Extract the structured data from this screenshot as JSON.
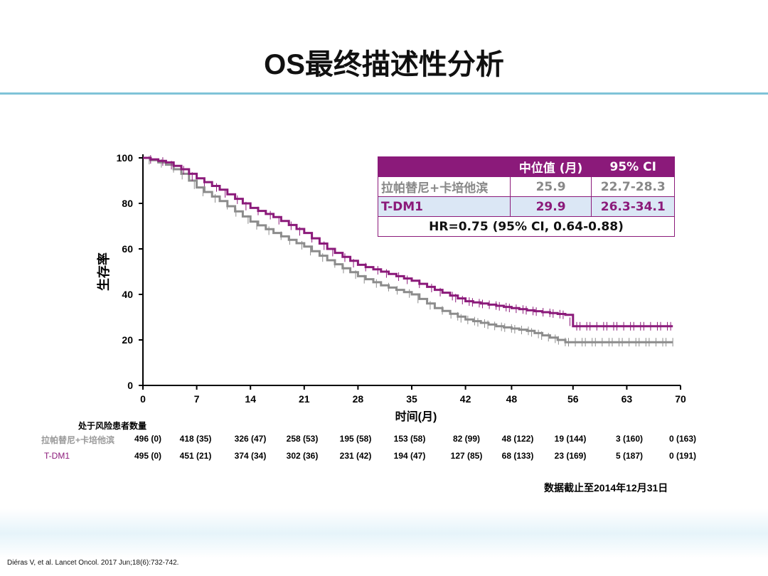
{
  "title": "OS最终描述性分析",
  "chart_data": {
    "type": "line",
    "title": "OS最终描述性分析",
    "xlabel": "时间(月)",
    "ylabel": "生存率",
    "xlim": [
      0,
      70
    ],
    "ylim": [
      0,
      100
    ],
    "xticks": [
      0,
      7,
      14,
      21,
      28,
      35,
      42,
      48,
      56,
      63,
      70
    ],
    "yticks": [
      0,
      20,
      40,
      60,
      80,
      100
    ],
    "series": [
      {
        "name": "拉帕替尼+卡培他滨",
        "color": "#8c8c8c",
        "x": [
          0,
          3,
          5,
          7,
          10,
          14,
          17,
          21,
          24,
          28,
          31,
          35,
          38,
          42,
          46,
          50,
          55,
          69
        ],
        "y": [
          100,
          97,
          93,
          87,
          81,
          72,
          67,
          61,
          55,
          48,
          44,
          40,
          34,
          29,
          26,
          24,
          19,
          19
        ]
      },
      {
        "name": "T-DM1",
        "color": "#8b1a7a",
        "x": [
          0,
          3,
          5,
          7,
          10,
          14,
          17,
          21,
          24,
          28,
          31,
          35,
          38,
          42,
          46,
          50,
          55,
          56,
          69
        ],
        "y": [
          100,
          98,
          95,
          91,
          86,
          78,
          74,
          67,
          60,
          53,
          50,
          46,
          42,
          37,
          35,
          33,
          31,
          26,
          26
        ]
      }
    ]
  },
  "summary": {
    "headers": [
      "",
      "中位值 (月)",
      "95% CI"
    ],
    "rows": [
      [
        "拉帕替尼+卡培他滨",
        "25.9",
        "22.7-28.3"
      ],
      [
        "T-DM1",
        "29.9",
        "26.3-34.1"
      ]
    ],
    "hr": "HR=0.75 (95% CI, 0.64-0.88)"
  },
  "risk": {
    "label": "处于风险患者数量",
    "rows": [
      {
        "name": "拉帕替尼+卡培他滨",
        "values": [
          "496 (0)",
          "418 (35)",
          "326 (47)",
          "258 (53)",
          "195 (58)",
          "153 (58)",
          "82 (99)",
          "48 (122)",
          "19 (144)",
          "3 (160)",
          "0 (163)"
        ]
      },
      {
        "name": "T-DM1",
        "values": [
          "495 (0)",
          "451 (21)",
          "374 (34)",
          "302 (36)",
          "231 (42)",
          "194 (47)",
          "127 (85)",
          "68 (133)",
          "23 (169)",
          "5 (187)",
          "0 (191)"
        ]
      }
    ]
  },
  "cutoff": "数据截止至2014年12月31日",
  "reference": "Diéras V, et al. Lancet Oncol. 2017 Jun;18(6):732-742."
}
